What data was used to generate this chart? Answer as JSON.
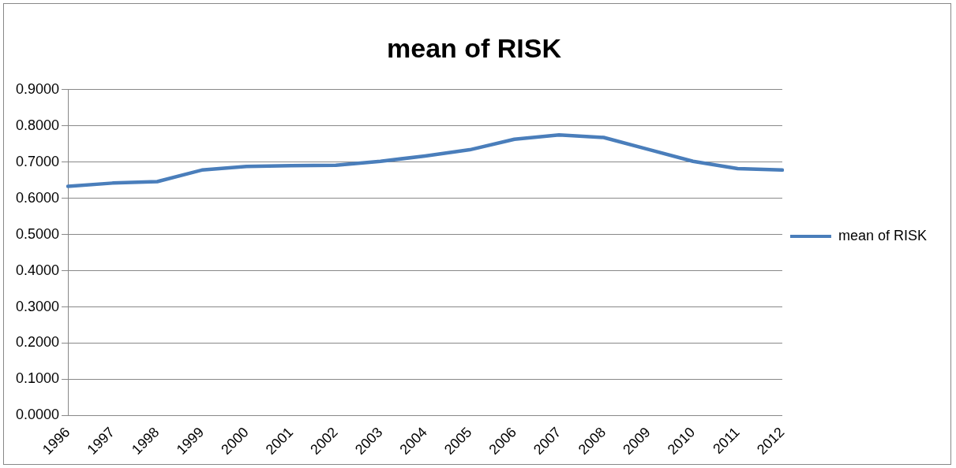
{
  "chart_data": {
    "type": "line",
    "title": "mean of RISK",
    "categories": [
      "1996",
      "1997",
      "1998",
      "1999",
      "2000",
      "2001",
      "2002",
      "2003",
      "2004",
      "2005",
      "2006",
      "2007",
      "2008",
      "2009",
      "2010",
      "2011",
      "2012"
    ],
    "series": [
      {
        "name": "mean of RISK",
        "color": "#4a7ebb",
        "values": [
          0.633,
          0.642,
          0.646,
          0.678,
          0.688,
          0.69,
          0.691,
          0.702,
          0.717,
          0.734,
          0.763,
          0.775,
          0.768,
          0.735,
          0.702,
          0.682,
          0.678
        ]
      }
    ],
    "ylim": [
      0,
      0.9
    ],
    "yticks": [
      {
        "value": 0,
        "label": "0.0000"
      },
      {
        "value": 0.1,
        "label": "0.1000"
      },
      {
        "value": 0.2,
        "label": "0.2000"
      },
      {
        "value": 0.3,
        "label": "0.3000"
      },
      {
        "value": 0.4,
        "label": "0.4000"
      },
      {
        "value": 0.5,
        "label": "0.5000"
      },
      {
        "value": 0.6,
        "label": "0.6000"
      },
      {
        "value": 0.7,
        "label": "0.7000"
      },
      {
        "value": 0.8,
        "label": "0.8000"
      },
      {
        "value": 0.9,
        "label": "0.9000"
      }
    ],
    "grid": "y",
    "legend": "right",
    "marker": "none",
    "line_style": "solid"
  }
}
